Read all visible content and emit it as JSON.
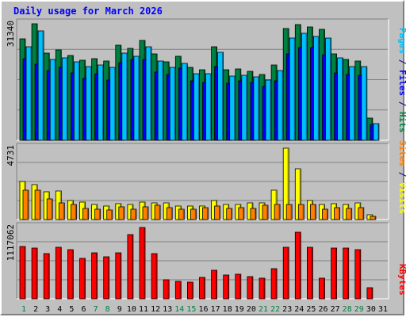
{
  "chart_data": {
    "type": "bar",
    "title": "Daily usage for March 2026",
    "categories": [
      "1",
      "2",
      "3",
      "4",
      "5",
      "6",
      "7",
      "8",
      "9",
      "10",
      "11",
      "12",
      "13",
      "14",
      "15",
      "16",
      "17",
      "18",
      "19",
      "20",
      "21",
      "22",
      "23",
      "24",
      "25",
      "26",
      "27",
      "28",
      "29",
      "30",
      "31"
    ],
    "weekend_days": [
      "1",
      "7",
      "8",
      "14",
      "15",
      "21",
      "22",
      "28",
      "29"
    ],
    "panels": [
      {
        "id": "traffic",
        "max_label": "31340",
        "ymax": 31340,
        "legend": [
          {
            "text": "Pages",
            "color": "#00c0ff"
          },
          {
            "text": " / ",
            "color": "#000080"
          },
          {
            "text": "Files",
            "color": "#0000ff"
          },
          {
            "text": " / ",
            "color": "#000080"
          },
          {
            "text": "Hits",
            "color": "#008040"
          }
        ],
        "series": [
          {
            "name": "Hits",
            "color": "#008040",
            "values": [
              27190,
              31340,
              23360,
              24210,
              22710,
              21430,
              22010,
              21300,
              25640,
              24790,
              26930,
              23210,
              21050,
              22570,
              19530,
              19020,
              25170,
              18960,
              19160,
              18610,
              17790,
              20320,
              30120,
              31120,
              30480,
              29820,
              23240,
              21690,
              21360,
              5950,
              null
            ]
          },
          {
            "name": "Files",
            "color": "#0000ff",
            "values": [
              22000,
              20500,
              18800,
              19700,
              18200,
              16700,
              17900,
              16200,
              20800,
              21700,
              21700,
              18400,
              17800,
              19500,
              15900,
              15600,
              19800,
              15300,
              16000,
              15600,
              14600,
              15900,
              23300,
              24900,
              25000,
              23100,
              18200,
              17700,
              17500,
              4200,
              null
            ]
          },
          {
            "name": "Pages",
            "color": "#00c0ff",
            "values": [
              25140,
              29340,
              21840,
              22110,
              21050,
              19840,
              20180,
              19640,
              23540,
              22620,
              25110,
              21350,
              19550,
              20760,
              17880,
              17840,
              23560,
              17210,
              17530,
              17120,
              16140,
              18710,
              27500,
              28790,
              27940,
              27510,
              22140,
              19760,
              19760,
              4480,
              null
            ]
          }
        ]
      },
      {
        "id": "visits",
        "max_label": "4731",
        "ymax": 4731,
        "legend": [
          {
            "text": "Sites",
            "color": "#ff8000"
          },
          {
            "text": " / ",
            "color": "#000080"
          },
          {
            "text": "Visits",
            "color": "#ffff00"
          }
        ],
        "series": [
          {
            "name": "Visits",
            "color": "#ffff00",
            "values": [
              2520,
              2320,
              1830,
              1910,
              1280,
              1170,
              980,
              880,
              1030,
              990,
              1170,
              1110,
              1100,
              870,
              880,
              880,
              1240,
              1020,
              1000,
              1080,
              1080,
              1960,
              4731,
              3360,
              1270,
              990,
              1030,
              1000,
              1110,
              300,
              null
            ]
          },
          {
            "name": "Sites",
            "color": "#ff8000",
            "values": [
              1940,
              1940,
              1380,
              1130,
              1010,
              730,
              670,
              640,
              850,
              700,
              860,
              920,
              780,
              680,
              700,
              800,
              870,
              730,
              800,
              760,
              920,
              1020,
              1020,
              1000,
              1000,
              700,
              810,
              730,
              780,
              200,
              null
            ]
          }
        ]
      },
      {
        "id": "kbytes",
        "max_label": "1117062",
        "ymax": 1117062,
        "legend": [
          {
            "text": "KBytes",
            "color": "#ff0000"
          }
        ],
        "series": [
          {
            "name": "KBytes",
            "color": "#ff0000",
            "values": [
              822000,
              794000,
              706000,
              806000,
              768000,
              631000,
              715000,
              661000,
              725000,
              1011000,
              1117062,
              704000,
              294000,
              272000,
              262000,
              330000,
              442000,
              376000,
              388000,
              345000,
              327000,
              467000,
              803000,
              1039000,
              807000,
              326000,
              789000,
              794000,
              768000,
              170000,
              null
            ]
          }
        ]
      }
    ]
  }
}
